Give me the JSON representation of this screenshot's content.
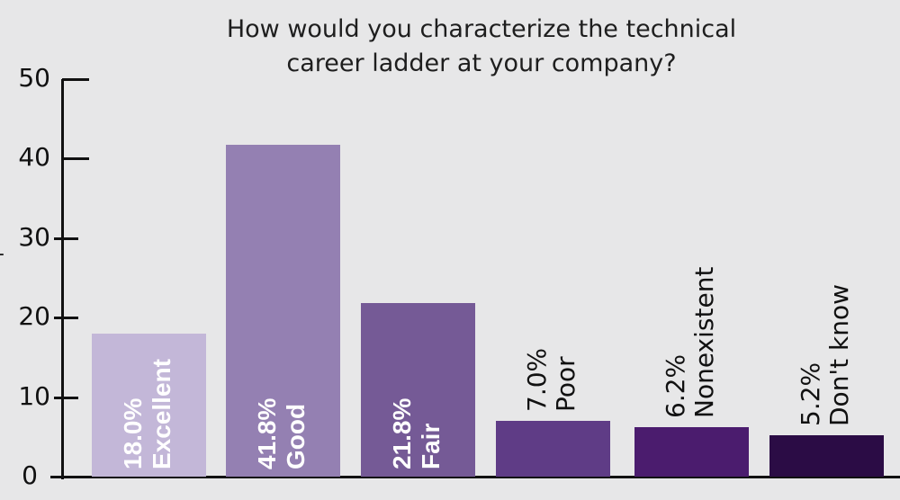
{
  "chart_data": {
    "type": "bar",
    "title": "How would you characterize the technical career ladder at your company?",
    "title_lines": [
      "How would you characterize the technical",
      "career ladder at your company?"
    ],
    "xlabel": "",
    "ylabel": "",
    "ylim": [
      0,
      50
    ],
    "yticks": [
      "0",
      "10",
      "20",
      "30",
      "40",
      "50"
    ],
    "grid": false,
    "legend": "none",
    "categories": [
      "Excellent",
      "Good",
      "Fair",
      "Poor",
      "Nonexistent",
      "Don't know"
    ],
    "values": [
      18.0,
      41.8,
      21.8,
      7.0,
      6.2,
      5.2
    ],
    "data_labels": [
      "18.0%",
      "41.8%",
      "21.8%",
      "7.0%",
      "6.2%",
      "5.2%"
    ],
    "colors": [
      "#c3b7d8",
      "#9480b2",
      "#755a96",
      "#5f3c86",
      "#4b1c6e",
      "#2b0c45"
    ]
  }
}
